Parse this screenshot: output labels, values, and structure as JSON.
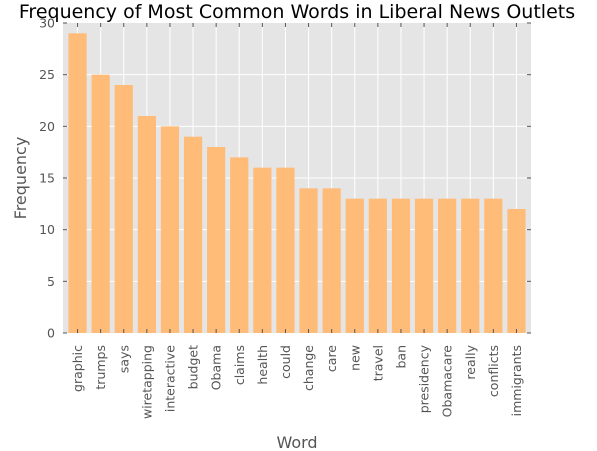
{
  "chart_data": {
    "type": "bar",
    "title": "Frequency of Most Common Words in Liberal News Outlets",
    "xlabel": "Word",
    "ylabel": "Frequency",
    "categories": [
      "graphic",
      "trumps",
      "says",
      "wiretapping",
      "interactive",
      "budget",
      "Obama",
      "claims",
      "health",
      "could",
      "change",
      "care",
      "new",
      "travel",
      "ban",
      "presidency",
      "Obamacare",
      "really",
      "conflicts",
      "immigrants"
    ],
    "values": [
      29,
      25,
      24,
      21,
      20,
      19,
      18,
      17,
      16,
      16,
      14,
      14,
      13,
      13,
      13,
      13,
      13,
      13,
      13,
      12
    ],
    "ylim": [
      0,
      30
    ],
    "yticks": [
      0,
      5,
      10,
      15,
      20,
      25,
      30
    ],
    "grid": true,
    "legend": "none",
    "colors": {
      "bar": "#FFBB78",
      "plot_background": "#E5E5E5",
      "grid": "#FFFFFF"
    }
  }
}
